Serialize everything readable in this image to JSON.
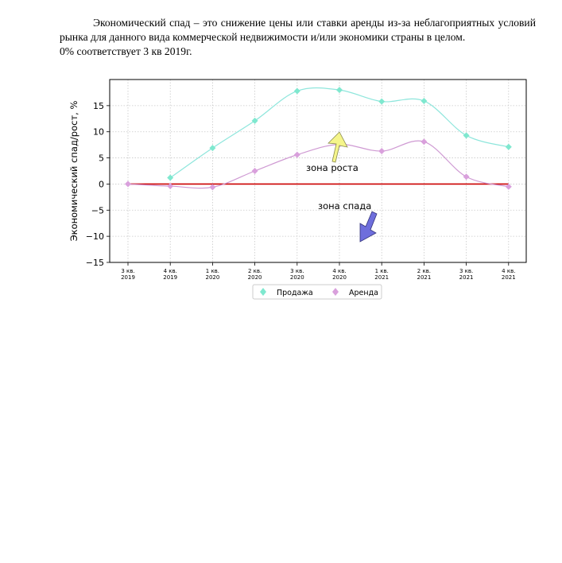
{
  "intro": {
    "line1": "Экономический спад – это снижение цены или ставки аренды из-за неблагоприятных условий рынка для данного вида коммерческой недвижимости и/или экономики страны в целом.",
    "line2": "0% соответствует 3 кв 2019г."
  },
  "chart_data": {
    "type": "line",
    "title": "",
    "xlabel": "",
    "ylabel": "Экономический спад/рост, %",
    "ylim": [
      -15,
      20
    ],
    "yticks": [
      -15,
      -10,
      -5,
      0,
      5,
      10,
      15
    ],
    "grid": true,
    "legend_position": "bottom-center",
    "categories": [
      [
        "3 кв.",
        "2019"
      ],
      [
        "4 кв.",
        "2019"
      ],
      [
        "1 кв.",
        "2020"
      ],
      [
        "2 кв.",
        "2020"
      ],
      [
        "3 кв.",
        "2020"
      ],
      [
        "4 кв.",
        "2020"
      ],
      [
        "1 кв.",
        "2021"
      ],
      [
        "2 кв.",
        "2021"
      ],
      [
        "3 кв.",
        "2021"
      ],
      [
        "4 кв.",
        "2021"
      ]
    ],
    "series": [
      {
        "name": "Продажа",
        "color": "#7fe8cf",
        "line_color": "#8ee6dc",
        "marker": "diamond",
        "values": [
          null,
          1.2,
          6.9,
          12.1,
          17.8,
          18.0,
          15.8,
          15.9,
          9.3,
          7.1
        ]
      },
      {
        "name": "Аренда",
        "color": "#d9a0dc",
        "line_color": "#cf9ad3",
        "marker": "diamond",
        "values": [
          0,
          -0.4,
          -0.6,
          2.5,
          5.6,
          7.6,
          6.3,
          8.1,
          1.4,
          -0.5
        ]
      }
    ],
    "zero_line_color": "#cc0000",
    "annotations": [
      {
        "text": "зона роста",
        "arrow": "up",
        "color": "#f5f58a"
      },
      {
        "text": "зона спада",
        "arrow": "down",
        "color": "#6e6edc"
      }
    ]
  }
}
